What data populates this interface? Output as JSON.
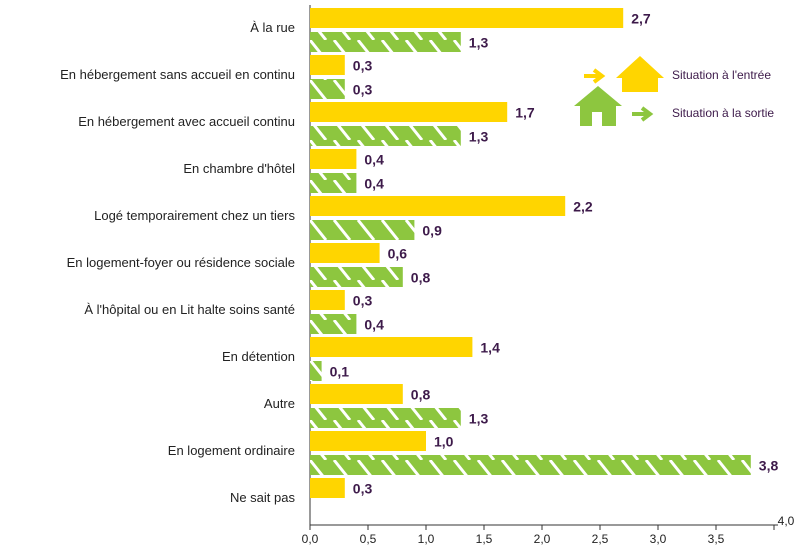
{
  "chart_data": {
    "type": "bar",
    "orientation": "horizontal",
    "categories": [
      "À la rue",
      "En hébergement sans accueil en continu",
      "En hébergement avec accueil continu",
      "En chambre d'hôtel",
      "Logé temporairement chez un tiers",
      "En logement-foyer ou résidence sociale",
      "À l'hôpital ou en Lit halte soins santé",
      "En détention",
      "Autre",
      "En logement ordinaire",
      "Ne sait pas"
    ],
    "series": [
      {
        "name": "Situation à l'entrée",
        "color": "#ffd500",
        "values": [
          2.7,
          0.3,
          1.7,
          0.4,
          2.2,
          0.6,
          0.3,
          1.4,
          0.8,
          1.0,
          0.3
        ],
        "value_labels": [
          "2,7",
          "0,3",
          "1,7",
          "0,4",
          "2,2",
          "0,6",
          "0,3",
          "1,4",
          "0,8",
          "1,0",
          "0,3"
        ]
      },
      {
        "name": "Situation à la sortie",
        "color": "#8dc63f",
        "values": [
          1.3,
          0.3,
          1.3,
          0.4,
          0.9,
          0.8,
          0.4,
          0.1,
          1.3,
          3.8,
          null
        ],
        "value_labels": [
          "1,3",
          "0,3",
          "1,3",
          "0,4",
          "0,9",
          "0,8",
          "0,4",
          "0,1",
          "1,3",
          "3,8",
          null
        ]
      }
    ],
    "xlim": [
      0,
      4
    ],
    "xticks": [
      {
        "value": 0,
        "label": "0,0"
      },
      {
        "value": 0.5,
        "label": "0,5"
      },
      {
        "value": 1,
        "label": "1,0"
      },
      {
        "value": 1.5,
        "label": "1,5"
      },
      {
        "value": 2,
        "label": "2,0"
      },
      {
        "value": 2.5,
        "label": "2,5"
      },
      {
        "value": 3,
        "label": "3,0"
      },
      {
        "value": 3.5,
        "label": "3,5"
      },
      {
        "value": 4,
        "label": "4,0"
      }
    ],
    "legend": "top-right"
  }
}
